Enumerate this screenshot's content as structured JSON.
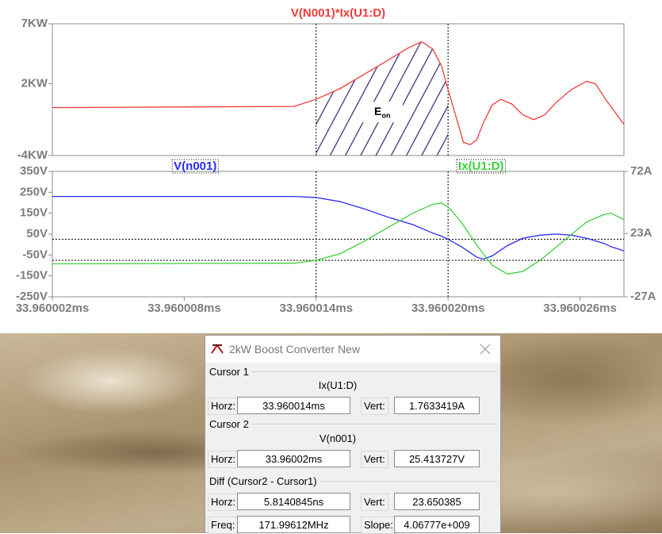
{
  "chart_data": [
    {
      "type": "line",
      "xlim": [
        33.960002,
        33.960028
      ],
      "ylim": [
        -4,
        7
      ],
      "yticks": [
        {
          "value": -4,
          "label": "-4KW"
        },
        {
          "value": 2,
          "label": "2KW"
        },
        {
          "value": 7,
          "label": "7KW"
        }
      ],
      "x": [
        33.960002,
        33.960013,
        33.960014,
        33.9600151,
        33.9600162,
        33.9600173,
        33.9600182,
        33.9600188,
        33.9600193,
        33.9600197,
        33.96002,
        33.9600204,
        33.9600207,
        33.960021,
        33.9600213,
        33.9600216,
        33.960022,
        33.9600224,
        33.9600229,
        33.9600234,
        33.9600239,
        33.9600244,
        33.9600249,
        33.9600256,
        33.9600263,
        33.9600267,
        33.9600272,
        33.960028
      ],
      "series": [
        {
          "name": "V(N001)*Ix(U1:D)",
          "color": "#f03c3c",
          "values": [
            0,
            0.1,
            0.7,
            1.6,
            2.8,
            4.0,
            5.0,
            5.5,
            4.9,
            3.5,
            1.5,
            -1.0,
            -2.9,
            -3.1,
            -2.7,
            -1.3,
            0.2,
            0.7,
            0.3,
            -0.6,
            -1.0,
            -0.6,
            0.4,
            1.5,
            2.2,
            2.0,
            0.6,
            -1.4
          ]
        }
      ],
      "cursors": [
        {
          "x": 33.960014
        },
        {
          "x": 33.96002
        }
      ],
      "annotation": {
        "text": "E",
        "subscript": "on"
      }
    },
    {
      "type": "line",
      "xlim": [
        33.960002,
        33.960028
      ],
      "ylim": [
        -250,
        350
      ],
      "y2lim": [
        -27,
        72
      ],
      "xticks": [
        {
          "value": 33.960002,
          "label": "33.960002ms"
        },
        {
          "value": 33.960008,
          "label": "33.960008ms"
        },
        {
          "value": 33.960014,
          "label": "33.960014ms"
        },
        {
          "value": 33.96002,
          "label": "33.960020ms"
        },
        {
          "value": 33.960026,
          "label": "33.960026ms"
        }
      ],
      "yticks": [
        {
          "value": -250,
          "label": "-250V"
        },
        {
          "value": -150,
          "label": "-150V"
        },
        {
          "value": -50,
          "label": "-50V"
        },
        {
          "value": 50,
          "label": "50V"
        },
        {
          "value": 150,
          "label": "150V"
        },
        {
          "value": 250,
          "label": "250V"
        },
        {
          "value": 350,
          "label": "350V"
        }
      ],
      "y2ticks": [
        {
          "value": -27,
          "label": "-27A"
        },
        {
          "value": 23,
          "label": "23A"
        },
        {
          "value": 72,
          "label": "72A"
        }
      ],
      "x": [
        33.960002,
        33.960013,
        33.960014,
        33.9600151,
        33.9600162,
        33.9600173,
        33.9600184,
        33.9600193,
        33.9600197,
        33.96002,
        33.9600206,
        33.9600213,
        33.9600216,
        33.960022,
        33.9600227,
        33.9600234,
        33.9600242,
        33.9600249,
        33.9600256,
        33.9600263,
        33.9600271,
        33.9600274,
        33.960028
      ],
      "series": [
        {
          "name": "V(n001)",
          "color": "#2b2bf0",
          "values": [
            230,
            230,
            225,
            205,
            170,
            130,
            95,
            55,
            40,
            25,
            -10,
            -60,
            -70,
            -55,
            -5,
            30,
            45,
            50,
            45,
            30,
            5,
            -10,
            -30
          ]
        },
        {
          "name": "Ix(U1:D)",
          "color": "#3ad23a",
          "axis": "y2",
          "values": [
            -1,
            -0.5,
            1.8,
            7,
            17,
            28,
            39,
            46,
            47,
            44,
            32,
            14,
            7,
            -2,
            -9,
            -7,
            2,
            12,
            22,
            32,
            38,
            39,
            34
          ]
        }
      ],
      "cursors": [
        {
          "x": 33.960014,
          "y": 1.7633419,
          "axis": "y2"
        },
        {
          "x": 33.96002,
          "y": 25.413727
        }
      ]
    }
  ],
  "dialog": {
    "title": "2kW Boost Converter New",
    "cursor1": {
      "label": "Cursor 1",
      "trace": "Ix(U1:D)",
      "horz_label": "Horz:",
      "horz": "33.960014ms",
      "vert_label": "Vert:",
      "vert": "1.7633419A"
    },
    "cursor2": {
      "label": "Cursor 2",
      "trace": "V(n001)",
      "horz_label": "Horz:",
      "horz": "33.96002ms",
      "vert_label": "Vert:",
      "vert": "25.413727V"
    },
    "diff": {
      "label": "Diff (Cursor2 - Cursor1)",
      "horz_label": "Horz:",
      "horz": "5.8140845ns",
      "vert_label": "Vert:",
      "vert": "23.650385",
      "freq_label": "Freq:",
      "freq": "171.99612MHz",
      "slope_label": "Slope:",
      "slope": "4.06777e+009"
    }
  }
}
